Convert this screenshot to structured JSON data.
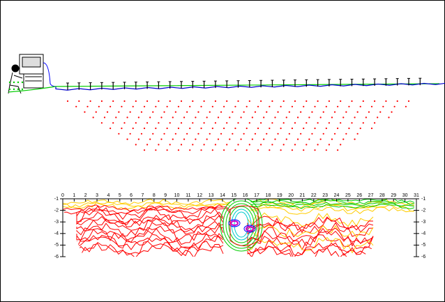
{
  "chart_data": {
    "type": "contour",
    "xlim": [
      0,
      31
    ],
    "xticks": [
      0,
      1,
      2,
      3,
      4,
      5,
      6,
      7,
      8,
      9,
      10,
      11,
      12,
      13,
      14,
      15,
      16,
      17,
      18,
      19,
      20,
      21,
      22,
      23,
      24,
      25,
      26,
      27,
      28,
      29,
      30,
      31
    ],
    "ylim": [
      -6,
      -1
    ],
    "yticks": [
      -1,
      -2,
      -3,
      -4,
      -5,
      -6
    ]
  }
}
